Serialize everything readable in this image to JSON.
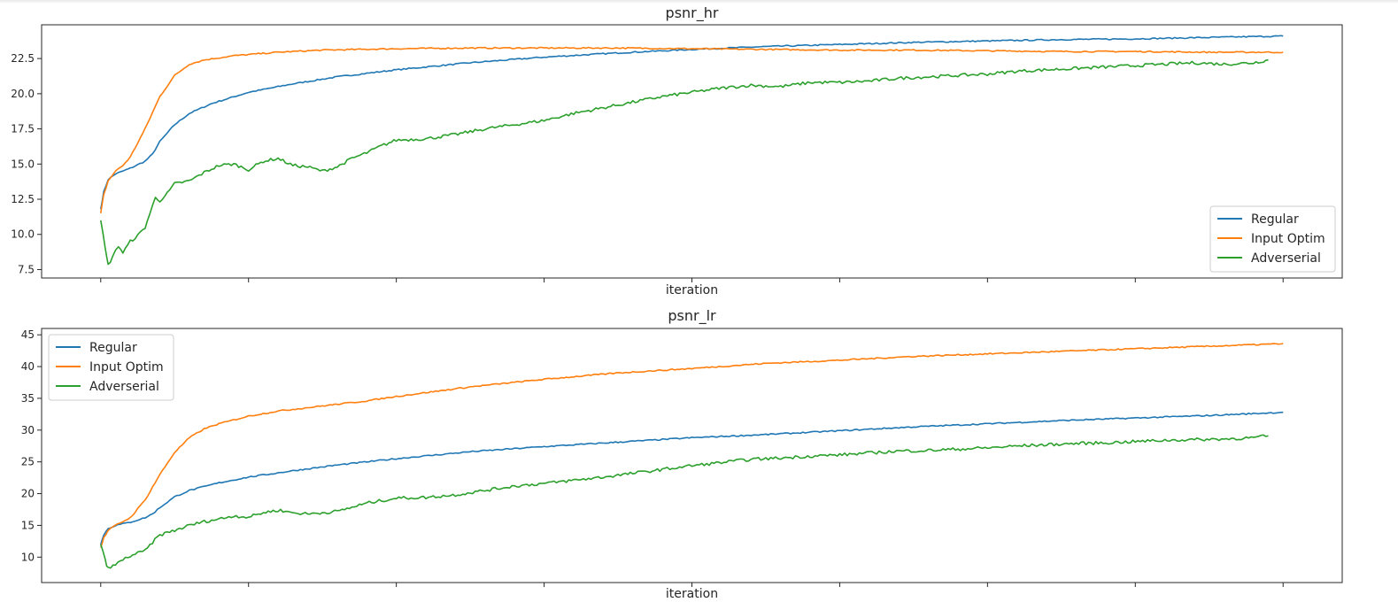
{
  "chart_data": [
    {
      "type": "line",
      "title": "psnr_hr",
      "xlabel": "iteration",
      "ylabel": "",
      "xlim": [
        -0.4,
        8.4
      ],
      "ylim": [
        6.9,
        24.9
      ],
      "yticks": [
        "7.5",
        "10.0",
        "12.5",
        "15.0",
        "17.5",
        "20.0",
        "22.5"
      ],
      "ytick_values": [
        7.5,
        10.0,
        12.5,
        15.0,
        17.5,
        20.0,
        22.5
      ],
      "xtick_values": [
        0,
        1,
        2,
        3,
        4,
        5,
        6,
        7,
        8
      ],
      "xticks_labeled": false,
      "grid": false,
      "legend_position": "lower-right",
      "series": [
        {
          "name": "Regular",
          "color": "#1f77b4",
          "points": [
            [
              0,
              11.8
            ],
            [
              0.02,
              13.0
            ],
            [
              0.05,
              13.9
            ],
            [
              0.1,
              14.3
            ],
            [
              0.2,
              14.7
            ],
            [
              0.3,
              15.2
            ],
            [
              0.35,
              15.7
            ],
            [
              0.4,
              16.6
            ],
            [
              0.5,
              17.8
            ],
            [
              0.6,
              18.6
            ],
            [
              0.75,
              19.3
            ],
            [
              1.0,
              20.1
            ],
            [
              1.3,
              20.7
            ],
            [
              1.6,
              21.2
            ],
            [
              2.0,
              21.7
            ],
            [
              2.5,
              22.2
            ],
            [
              3.0,
              22.6
            ],
            [
              3.5,
              22.9
            ],
            [
              4.0,
              23.15
            ],
            [
              4.5,
              23.35
            ],
            [
              5.0,
              23.5
            ],
            [
              5.5,
              23.65
            ],
            [
              6.0,
              23.75
            ],
            [
              6.5,
              23.85
            ],
            [
              7.0,
              23.9
            ],
            [
              7.5,
              24.0
            ],
            [
              8.0,
              24.1
            ]
          ]
        },
        {
          "name": "Input Optim",
          "color": "#ff7f0e",
          "points": [
            [
              0,
              11.5
            ],
            [
              0.02,
              12.8
            ],
            [
              0.05,
              13.8
            ],
            [
              0.1,
              14.5
            ],
            [
              0.15,
              14.9
            ],
            [
              0.2,
              15.5
            ],
            [
              0.3,
              17.5
            ],
            [
              0.4,
              19.8
            ],
            [
              0.5,
              21.3
            ],
            [
              0.6,
              22.1
            ],
            [
              0.7,
              22.4
            ],
            [
              0.9,
              22.7
            ],
            [
              1.2,
              22.95
            ],
            [
              1.5,
              23.1
            ],
            [
              2.0,
              23.2
            ],
            [
              2.5,
              23.25
            ],
            [
              3.0,
              23.25
            ],
            [
              3.5,
              23.25
            ],
            [
              4.0,
              23.2
            ],
            [
              4.5,
              23.15
            ],
            [
              5.0,
              23.1
            ],
            [
              5.5,
              23.1
            ],
            [
              6.0,
              23.05
            ],
            [
              6.5,
              23.0
            ],
            [
              7.0,
              23.0
            ],
            [
              7.5,
              22.95
            ],
            [
              8.0,
              22.95
            ]
          ]
        },
        {
          "name": "Adverserial",
          "color": "#2ca02c",
          "points": [
            [
              0,
              11.0
            ],
            [
              0.03,
              9.0
            ],
            [
              0.05,
              7.8
            ],
            [
              0.08,
              8.4
            ],
            [
              0.12,
              9.2
            ],
            [
              0.15,
              8.7
            ],
            [
              0.2,
              9.5
            ],
            [
              0.25,
              9.9
            ],
            [
              0.3,
              10.5
            ],
            [
              0.33,
              11.4
            ],
            [
              0.37,
              12.6
            ],
            [
              0.4,
              12.4
            ],
            [
              0.45,
              12.9
            ],
            [
              0.5,
              13.6
            ],
            [
              0.6,
              13.8
            ],
            [
              0.7,
              14.4
            ],
            [
              0.8,
              14.9
            ],
            [
              0.9,
              15.0
            ],
            [
              1.0,
              14.6
            ],
            [
              1.1,
              15.2
            ],
            [
              1.2,
              15.4
            ],
            [
              1.3,
              14.9
            ],
            [
              1.4,
              14.8
            ],
            [
              1.5,
              14.5
            ],
            [
              1.6,
              14.8
            ],
            [
              1.7,
              15.4
            ],
            [
              1.8,
              15.8
            ],
            [
              1.9,
              16.3
            ],
            [
              2.0,
              16.7
            ],
            [
              2.2,
              16.8
            ],
            [
              2.4,
              17.1
            ],
            [
              2.6,
              17.5
            ],
            [
              2.8,
              17.8
            ],
            [
              3.0,
              18.1
            ],
            [
              3.2,
              18.6
            ],
            [
              3.4,
              19.0
            ],
            [
              3.6,
              19.4
            ],
            [
              3.8,
              19.8
            ],
            [
              4.0,
              20.1
            ],
            [
              4.2,
              20.4
            ],
            [
              4.4,
              20.6
            ],
            [
              4.6,
              20.5
            ],
            [
              4.8,
              20.8
            ],
            [
              5.0,
              20.8
            ],
            [
              5.2,
              20.9
            ],
            [
              5.4,
              21.1
            ],
            [
              5.6,
              21.2
            ],
            [
              5.8,
              21.3
            ],
            [
              6.0,
              21.4
            ],
            [
              6.2,
              21.6
            ],
            [
              6.4,
              21.7
            ],
            [
              6.6,
              21.8
            ],
            [
              6.8,
              21.9
            ],
            [
              7.0,
              22.0
            ],
            [
              7.2,
              22.1
            ],
            [
              7.4,
              22.2
            ],
            [
              7.6,
              22.1
            ],
            [
              7.8,
              22.2
            ],
            [
              7.9,
              22.4
            ]
          ]
        }
      ]
    },
    {
      "type": "line",
      "title": "psnr_lr",
      "xlabel": "iteration",
      "ylabel": "",
      "xlim": [
        -0.4,
        8.4
      ],
      "ylim": [
        6.0,
        46.0
      ],
      "yticks": [
        "10",
        "15",
        "20",
        "25",
        "30",
        "35",
        "40",
        "45"
      ],
      "ytick_values": [
        10,
        15,
        20,
        25,
        30,
        35,
        40,
        45
      ],
      "xtick_values": [
        0,
        1,
        2,
        3,
        4,
        5,
        6,
        7,
        8
      ],
      "xticks_labeled": false,
      "grid": false,
      "legend_position": "upper-left",
      "series": [
        {
          "name": "Regular",
          "color": "#1f77b4",
          "points": [
            [
              0,
              12.0
            ],
            [
              0.02,
              13.5
            ],
            [
              0.05,
              14.5
            ],
            [
              0.1,
              15.0
            ],
            [
              0.2,
              15.5
            ],
            [
              0.3,
              16.2
            ],
            [
              0.35,
              16.8
            ],
            [
              0.4,
              17.8
            ],
            [
              0.5,
              19.5
            ],
            [
              0.6,
              20.5
            ],
            [
              0.8,
              21.7
            ],
            [
              1.0,
              22.6
            ],
            [
              1.3,
              23.6
            ],
            [
              1.6,
              24.5
            ],
            [
              2.0,
              25.5
            ],
            [
              2.5,
              26.6
            ],
            [
              3.0,
              27.4
            ],
            [
              3.5,
              28.1
            ],
            [
              4.0,
              28.8
            ],
            [
              4.5,
              29.3
            ],
            [
              5.0,
              29.9
            ],
            [
              5.5,
              30.5
            ],
            [
              6.0,
              31.0
            ],
            [
              6.5,
              31.5
            ],
            [
              7.0,
              31.9
            ],
            [
              7.5,
              32.3
            ],
            [
              8.0,
              32.8
            ]
          ]
        },
        {
          "name": "Input Optim",
          "color": "#ff7f0e",
          "points": [
            [
              0,
              11.5
            ],
            [
              0.02,
              13.0
            ],
            [
              0.05,
              14.2
            ],
            [
              0.1,
              15.0
            ],
            [
              0.2,
              16.2
            ],
            [
              0.3,
              19.0
            ],
            [
              0.4,
              23.0
            ],
            [
              0.5,
              26.5
            ],
            [
              0.6,
              28.8
            ],
            [
              0.7,
              30.2
            ],
            [
              0.8,
              31.0
            ],
            [
              1.0,
              32.2
            ],
            [
              1.2,
              33.0
            ],
            [
              1.5,
              33.8
            ],
            [
              1.8,
              34.6
            ],
            [
              2.0,
              35.3
            ],
            [
              2.5,
              36.8
            ],
            [
              3.0,
              38.0
            ],
            [
              3.5,
              39.0
            ],
            [
              4.0,
              39.7
            ],
            [
              4.5,
              40.5
            ],
            [
              5.0,
              41.0
            ],
            [
              5.5,
              41.6
            ],
            [
              6.0,
              42.0
            ],
            [
              6.5,
              42.4
            ],
            [
              7.0,
              42.8
            ],
            [
              7.5,
              43.2
            ],
            [
              8.0,
              43.6
            ]
          ]
        },
        {
          "name": "Adverserial",
          "color": "#2ca02c",
          "points": [
            [
              0,
              12.0
            ],
            [
              0.03,
              9.5
            ],
            [
              0.05,
              8.2
            ],
            [
              0.1,
              8.8
            ],
            [
              0.15,
              9.6
            ],
            [
              0.2,
              10.2
            ],
            [
              0.3,
              11.0
            ],
            [
              0.35,
              12.3
            ],
            [
              0.4,
              13.5
            ],
            [
              0.5,
              14.2
            ],
            [
              0.6,
              15.0
            ],
            [
              0.7,
              15.6
            ],
            [
              0.8,
              16.0
            ],
            [
              0.9,
              16.5
            ],
            [
              1.0,
              16.3
            ],
            [
              1.1,
              17.0
            ],
            [
              1.2,
              17.4
            ],
            [
              1.3,
              17.0
            ],
            [
              1.4,
              16.8
            ],
            [
              1.5,
              17.0
            ],
            [
              1.6,
              17.2
            ],
            [
              1.8,
              18.5
            ],
            [
              2.0,
              19.3
            ],
            [
              2.2,
              19.4
            ],
            [
              2.4,
              19.8
            ],
            [
              2.6,
              20.5
            ],
            [
              2.8,
              21.2
            ],
            [
              3.0,
              21.6
            ],
            [
              3.2,
              22.1
            ],
            [
              3.4,
              22.6
            ],
            [
              3.6,
              23.2
            ],
            [
              3.8,
              23.8
            ],
            [
              4.0,
              24.4
            ],
            [
              4.2,
              24.9
            ],
            [
              4.4,
              25.4
            ],
            [
              4.6,
              25.6
            ],
            [
              4.8,
              25.9
            ],
            [
              5.0,
              26.1
            ],
            [
              5.2,
              26.4
            ],
            [
              5.4,
              26.7
            ],
            [
              5.6,
              26.8
            ],
            [
              5.8,
              27.0
            ],
            [
              6.0,
              27.2
            ],
            [
              6.2,
              27.5
            ],
            [
              6.4,
              27.7
            ],
            [
              6.6,
              27.9
            ],
            [
              6.8,
              28.0
            ],
            [
              7.0,
              28.2
            ],
            [
              7.2,
              28.4
            ],
            [
              7.4,
              28.5
            ],
            [
              7.6,
              28.6
            ],
            [
              7.8,
              28.8
            ],
            [
              7.9,
              29.1
            ]
          ]
        }
      ]
    }
  ]
}
